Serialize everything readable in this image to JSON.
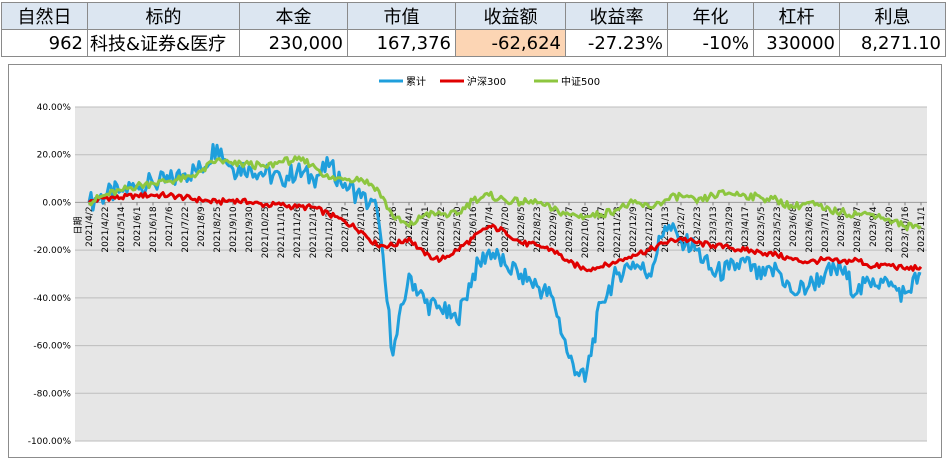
{
  "summary": {
    "headers": [
      "自然日",
      "标的",
      "本金",
      "市值",
      "收益额",
      "收益率",
      "年化",
      "杠杆",
      "利息"
    ],
    "values": [
      "962",
      "科技&证券&医疗",
      "230,000",
      "167,376",
      "-62,624",
      "-27.23%",
      "-10%",
      "330000",
      "8,271.10"
    ]
  },
  "colors": {
    "header_bg": "#dce6f1",
    "highlight_bg": "#fcd5b4",
    "plot_bg": "#e6e6e6",
    "series_cumulative": "#1f9fdc",
    "series_hs300": "#e00000",
    "series_zz500": "#8dc63f"
  },
  "chart_data": {
    "type": "line",
    "title": "",
    "xlabel": "日期",
    "ylabel": "",
    "ylim": [
      -100,
      40
    ],
    "y_ticks": [
      "40.00%",
      "20.00%",
      "0.00%",
      "-20.00%",
      "-40.00%",
      "-60.00%",
      "-80.00%",
      "-100.00%"
    ],
    "y_tick_values": [
      40,
      20,
      0,
      -20,
      -40,
      -60,
      -80,
      -100
    ],
    "x_ticks": [
      "2021/4/2",
      "2021/4/22",
      "2021/5/14",
      "2021/6/1",
      "2021/6/18",
      "2021/7/6",
      "2021/7/22",
      "2021/8/9",
      "2021/8/25",
      "2021/9/10",
      "2021/9/30",
      "2021/10/25",
      "2021/11/10",
      "2021/11/26",
      "2021/12/14",
      "2021/12/30",
      "2022/1/17",
      "2022/2/10",
      "2022/2/28",
      "2022/3/16",
      "2022/4/1",
      "2022/4/21",
      "2022/5/12",
      "2022/5/30",
      "2022/6/16",
      "2022/7/4",
      "2022/7/20",
      "2022/8/5",
      "2022/8/23",
      "2022/9/8",
      "2022/9/27",
      "2022/10/20",
      "2022/11/7",
      "2022/11/23",
      "2022/12/9",
      "2022/12/27",
      "2023/1/13",
      "2023/2/7",
      "2023/2/23",
      "2023/3/13",
      "2023/3/29",
      "2023/4/17",
      "2023/5/5",
      "2023/5/23",
      "2023/6/8",
      "2023/6/28",
      "2023/7/14",
      "2023/8/1",
      "2023/8/17",
      "2023/9/4",
      "2023/9/20",
      "2023/10/16",
      "2023/11/1"
    ],
    "grid": true,
    "legend_position": "top-center",
    "series": [
      {
        "name": "累计",
        "values": [
          0,
          3,
          5,
          7,
          8,
          9,
          12,
          14,
          24,
          14,
          15,
          12,
          10,
          13,
          10,
          15,
          8,
          2,
          -3,
          -64,
          -30,
          -42,
          -45,
          -50,
          -30,
          -20,
          -26,
          -30,
          -35,
          -40,
          -65,
          -75,
          -42,
          -30,
          -25,
          -30,
          -10,
          -15,
          -20,
          -30,
          -28,
          -25,
          -32,
          -28,
          -38,
          -35,
          -30,
          -28,
          -38,
          -32,
          -35,
          -38,
          -30
        ]
      },
      {
        "name": "沪深300",
        "values": [
          0,
          2,
          2,
          3,
          3,
          3,
          2,
          1,
          0,
          1,
          0,
          -1,
          -1,
          -2,
          -2,
          -5,
          -8,
          -12,
          -18,
          -18,
          -15,
          -22,
          -24,
          -20,
          -15,
          -10,
          -12,
          -17,
          -18,
          -20,
          -25,
          -28,
          -27,
          -25,
          -22,
          -20,
          -17,
          -15,
          -17,
          -18,
          -19,
          -20,
          -21,
          -22,
          -24,
          -25,
          -24,
          -25,
          -24,
          -27,
          -26,
          -28,
          -27
        ]
      },
      {
        "name": "中证500",
        "values": [
          0,
          3,
          5,
          7,
          8,
          9,
          10,
          13,
          18,
          16,
          16,
          15,
          17,
          18,
          16,
          10,
          10,
          10,
          6,
          -6,
          -10,
          -5,
          -5,
          -5,
          1,
          3,
          1,
          0,
          0,
          -3,
          -5,
          -6,
          -5,
          -3,
          0,
          -2,
          1,
          3,
          0,
          3,
          4,
          3,
          2,
          1,
          -2,
          0,
          -3,
          -4,
          -5,
          -5,
          -7,
          -10,
          -10
        ]
      }
    ]
  }
}
